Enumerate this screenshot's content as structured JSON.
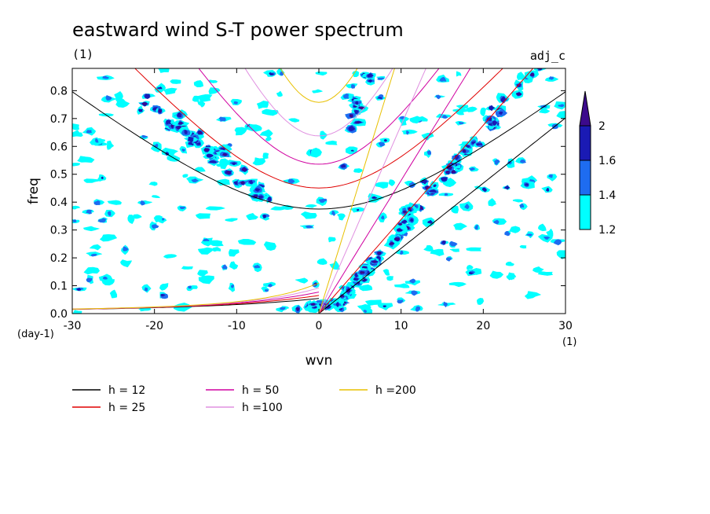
{
  "chart_data": {
    "type": "heatmap",
    "title": "eastward wind S-T power spectrum",
    "subtitle": "(1)",
    "top_right_label": "adj_c",
    "xlabel": "wvn",
    "ylabel": "freq",
    "x_unit_label": "(1)",
    "y_unit_label": "(day-1)",
    "xlim": [
      -30,
      30
    ],
    "ylim": [
      0,
      0.88
    ],
    "xticks": [
      -30,
      -20,
      -10,
      0,
      10,
      20,
      30
    ],
    "xtick_labels": [
      "-30",
      "-20",
      "-10",
      "0",
      "10",
      "20",
      "30"
    ],
    "yticks": [
      0,
      0.1,
      0.2,
      0.3,
      0.4,
      0.5,
      0.6,
      0.7,
      0.8
    ],
    "ytick_labels": [
      "0.0",
      "0.1",
      "0.2",
      "0.3",
      "0.4",
      "0.5",
      "0.6",
      "0.7",
      "0.8"
    ],
    "colorbar": {
      "levels": [
        1.2,
        1.4,
        1.6,
        2
      ],
      "labels": [
        "1.2",
        "1.4",
        "1.6",
        "2"
      ],
      "colors": [
        "#00ffff",
        "#1e6cf0",
        "#1a1ab4",
        "#3c0a8c"
      ]
    },
    "dispersion_curves": [
      {
        "name": "h = 12",
        "h": 12,
        "color": "#000000"
      },
      {
        "name": "h = 25",
        "h": 25,
        "color": "#e00000"
      },
      {
        "name": "h = 50",
        "h": 50,
        "color": "#d000a0"
      },
      {
        "name": "h =100",
        "h": 100,
        "color": "#e090e0"
      },
      {
        "name": "h =200",
        "h": 200,
        "color": "#e8c000"
      }
    ],
    "high_power_regions": [
      {
        "level": 2,
        "wvn": [
          2,
          12
        ],
        "freq": [
          0.05,
          0.33
        ]
      },
      {
        "level": 2,
        "wvn": [
          -22,
          -5
        ],
        "freq": [
          0.4,
          0.8
        ]
      },
      {
        "level": 2,
        "wvn": [
          -3,
          3
        ],
        "freq": [
          0,
          0.06
        ]
      },
      {
        "level": 1.6,
        "wvn": [
          8,
          28
        ],
        "freq": [
          0.3,
          0.88
        ]
      }
    ]
  },
  "legend": {
    "entries": [
      "h = 12",
      "h = 25",
      "h = 50",
      "h =100",
      "h =200"
    ]
  }
}
